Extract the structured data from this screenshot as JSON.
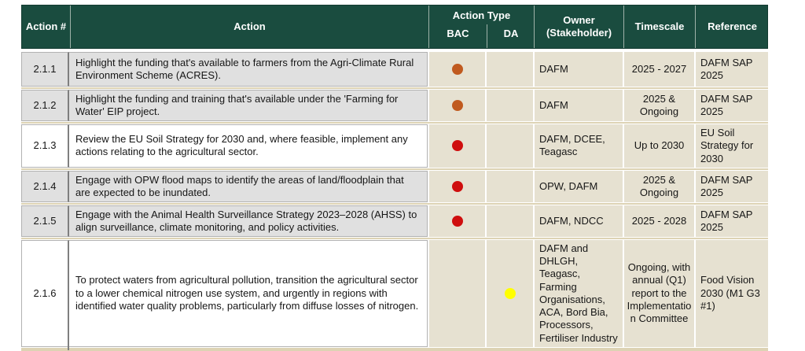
{
  "table": {
    "headers": {
      "action_num": "Action #",
      "action": "Action",
      "action_type": "Action Type",
      "bac": "BAC",
      "da": "DA",
      "owner": "Owner\n(Stakeholder)",
      "timescale": "Timescale",
      "reference": "Reference"
    },
    "colors": {
      "header_green": "#1a4c3f",
      "row_gray": "#e0e0e0",
      "row_beige": "#e6e1d1",
      "separator_khaki": "#ddd3b4"
    },
    "dot_colors": {
      "orange": "#c05a1f",
      "red": "#cf0e0e",
      "yellow": "#ffff00"
    },
    "rows": [
      {
        "id": "2.1.1",
        "action": "Highlight the funding that's available to farmers from the Agri-Climate Rural Environment Scheme (ACRES).",
        "bac": "orange",
        "da": "",
        "owner": "DAFM",
        "timescale": "2025 - 2027",
        "reference": "DAFM SAP 2025"
      },
      {
        "id": "2.1.2",
        "action": "Highlight the funding and training that's available under the 'Farming for Water' EIP project.",
        "bac": "orange",
        "da": "",
        "owner": "DAFM",
        "timescale": "2025 & Ongoing",
        "reference": "DAFM SAP 2025"
      },
      {
        "id": "2.1.3",
        "action": "Review the EU Soil Strategy for 2030 and, where feasible, implement any actions relating to the agricultural sector.",
        "bac": "red",
        "da": "",
        "owner": "DAFM, DCEE, Teagasc",
        "timescale": "Up to 2030",
        "reference": "EU Soil Strategy for 2030"
      },
      {
        "id": "2.1.4",
        "action": "Engage with OPW flood maps to identify the areas of land/floodplain that are expected to be inundated.",
        "bac": "red",
        "da": "",
        "owner": "OPW, DAFM",
        "timescale": "2025 & Ongoing",
        "reference": "DAFM SAP 2025"
      },
      {
        "id": "2.1.5",
        "action": "Engage with the Animal Health Surveillance Strategy 2023–2028 (AHSS) to align surveillance, climate monitoring, and policy activities.",
        "bac": "red",
        "da": "",
        "owner": "DAFM, NDCC",
        "timescale": "2025 - 2028",
        "reference": "DAFM SAP 2025"
      },
      {
        "id": "2.1.6",
        "action": "To protect waters from agricultural pollution, transition the agricultural sector to a lower chemical nitrogen use system, and urgently in regions with identified water quality problems, particularly from diffuse losses of nitrogen.",
        "bac": "",
        "da": "yellow",
        "owner": "DAFM and DHLGH, Teagasc, Farming Organisations, ACA, Bord Bia, Processors, Fertiliser Industry",
        "timescale": "Ongoing, with annual (Q1) report to the Implementation Committee",
        "reference": "Food Vision 2030 (M1 G3 #1)"
      }
    ]
  }
}
